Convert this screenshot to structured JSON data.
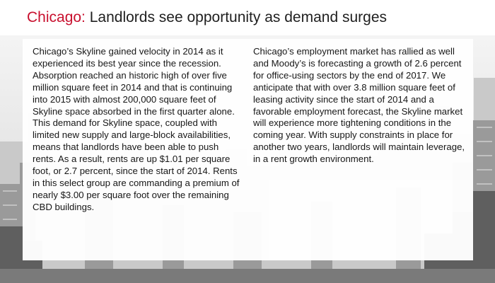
{
  "slide": {
    "title_city": "Chicago:",
    "title_rest": " Landlords see opportunity as demand surges",
    "left_column": "Chicago’s Skyline gained velocity in 2014 as it experienced its best year since the recession. Absorption reached an historic high of over five million square feet in 2014 and that is continuing into 2015 with almost 200,000 square feet of Skyline space absorbed in the first quarter alone. This demand for Skyline space, coupled with limited new supply and large-block availabilities, means that landlords have been able to push rents. As a result, rents are up $1.01 per square foot, or 2.7 percent, since the start of 2014. Rents in this select group are commanding a premium of nearly $3.00 per square foot over the remaining CBD buildings.",
    "right_column": "Chicago’s employment market has rallied as well and Moody’s is forecasting a growth of 2.6 percent for office-using sectors by the end of 2017. We anticipate that with over 3.8 million square feet of leasing activity since the start of 2014 and a favorable employment forecast, the Skyline market will experience more tightening conditions in the coming year. With supply constraints in place for another two years, landlords will maintain leverage, in a rent growth environment."
  },
  "colors": {
    "accent": "#c8102e",
    "title_text": "#1f1f1f",
    "body_text": "#111111",
    "skyline_dark": "#5a5a5a",
    "skyline_light": "#d0d0d0"
  }
}
